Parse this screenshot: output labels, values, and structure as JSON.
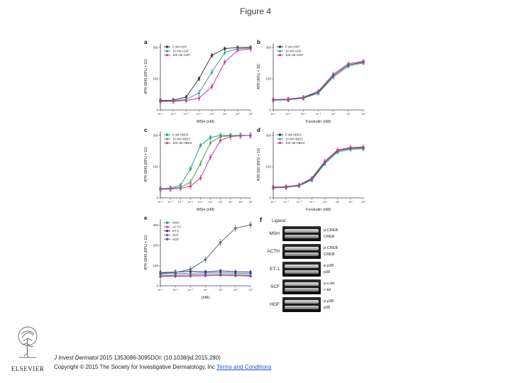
{
  "slide": {
    "title": "Figure 4"
  },
  "figure": {
    "blot_panel": {
      "panel": "f",
      "header": "Ligand",
      "rows": [
        {
          "ligand": "MSH",
          "bands": [
            "p-CREB",
            "CREB"
          ]
        },
        {
          "ligand": "ACTH",
          "bands": [
            "p-CREB",
            "CREB"
          ]
        },
        {
          "ligand": "ET-1",
          "bands": [
            "p-p38",
            "p38"
          ]
        },
        {
          "ligand": "SCF",
          "bands": [
            "p-c-kit",
            "c-kit"
          ]
        },
        {
          "ligand": "HGF",
          "bands": [
            "p-p38",
            "p38"
          ]
        }
      ]
    }
  },
  "chart_data": [
    {
      "id": "a",
      "panel": "a",
      "type": "line",
      "xlabel": "MSH (nM)",
      "ylabel": "ATR-S845 (RFU × 10)",
      "xlog": [
        -4,
        3
      ],
      "ylim": [
        0,
        320
      ],
      "yticks": [
        0,
        150,
        300
      ],
      "legend_position": "top-left",
      "grid": false,
      "series": [
        {
          "name": "0 nM ASIP",
          "color": "#3a3a3a",
          "marker": "s",
          "err": 9,
          "points": [
            [
              -4,
              45
            ],
            [
              -3,
              47
            ],
            [
              -2,
              62
            ],
            [
              -1,
              150
            ],
            [
              0,
              262
            ],
            [
              1,
              294
            ],
            [
              2,
              300
            ],
            [
              3,
              300
            ]
          ]
        },
        {
          "name": "10 nM ASIP",
          "color": "#2e9e8e",
          "marker": "^",
          "err": 11,
          "points": [
            [
              -4,
              42
            ],
            [
              -3,
              44
            ],
            [
              -2,
              50
            ],
            [
              -1,
              82
            ],
            [
              0,
              182
            ],
            [
              1,
              276
            ],
            [
              2,
              294
            ],
            [
              3,
              297
            ]
          ]
        },
        {
          "name": "100 nM ASIP",
          "color": "#c23f94",
          "marker": "o",
          "err": 11,
          "points": [
            [
              -4,
              40
            ],
            [
              -3,
              42
            ],
            [
              -2,
              45
            ],
            [
              -1,
              56
            ],
            [
              0,
              112
            ],
            [
              1,
              230
            ],
            [
              2,
              286
            ],
            [
              3,
              293
            ]
          ]
        }
      ]
    },
    {
      "id": "b",
      "panel": "b",
      "type": "line",
      "xlabel": "Forskolin (nM)",
      "ylabel": "ATR (RFU × 10)",
      "xlog": [
        -4,
        2
      ],
      "ylim": [
        0,
        320
      ],
      "yticks": [
        0,
        150,
        300
      ],
      "legend_position": "top-left",
      "grid": false,
      "series": [
        {
          "name": "0 nM ASIP",
          "color": "#3a3a3a",
          "marker": "s",
          "err": 8,
          "points": [
            [
              -4,
              48
            ],
            [
              -3,
              50
            ],
            [
              -2,
              58
            ],
            [
              -1,
              85
            ],
            [
              0,
              165
            ],
            [
              1,
              216
            ],
            [
              2,
              230
            ]
          ]
        },
        {
          "name": "10 nM ASIP",
          "color": "#2e9e8e",
          "marker": "^",
          "err": 9,
          "points": [
            [
              -4,
              46
            ],
            [
              -3,
              48
            ],
            [
              -2,
              56
            ],
            [
              -1,
              80
            ],
            [
              0,
              158
            ],
            [
              1,
              210
            ],
            [
              2,
              226
            ]
          ]
        },
        {
          "name": "100 nM ASIP",
          "color": "#c23f94",
          "marker": "o",
          "err": 9,
          "points": [
            [
              -4,
              50
            ],
            [
              -3,
              52
            ],
            [
              -2,
              61
            ],
            [
              -1,
              90
            ],
            [
              0,
              172
            ],
            [
              1,
              222
            ],
            [
              2,
              234
            ]
          ]
        }
      ]
    },
    {
      "id": "c",
      "panel": "c",
      "type": "line",
      "xlabel": "MSH (nM)",
      "ylabel": "ATR-S845 (RFU × 10)",
      "xlog": [
        -5,
        4
      ],
      "ylim": [
        0,
        320
      ],
      "yticks": [
        0,
        150,
        300
      ],
      "legend_position": "top-left",
      "grid": false,
      "series": [
        {
          "name": "0 nM HBD3",
          "color": "#2e9e8e",
          "marker": "s",
          "err": 10,
          "points": [
            [
              -5,
              45
            ],
            [
              -4,
              47
            ],
            [
              -3,
              60
            ],
            [
              -2,
              140
            ],
            [
              -1,
              252
            ],
            [
              0,
              290
            ],
            [
              1,
              300
            ],
            [
              2,
              300
            ],
            [
              3,
              300
            ],
            [
              4,
              300
            ]
          ]
        },
        {
          "name": "10 nM HBD3",
          "color": "#4aa84a",
          "marker": "^",
          "err": 12,
          "points": [
            [
              -5,
              43
            ],
            [
              -4,
              45
            ],
            [
              -3,
              50
            ],
            [
              -2,
              75
            ],
            [
              -1,
              165
            ],
            [
              0,
              266
            ],
            [
              1,
              294
            ],
            [
              2,
              298
            ],
            [
              3,
              300
            ],
            [
              4,
              300
            ]
          ]
        },
        {
          "name": "100 nM HBD3",
          "color": "#c23f94",
          "marker": "o",
          "err": 12,
          "points": [
            [
              -5,
              41
            ],
            [
              -4,
              43
            ],
            [
              -3,
              46
            ],
            [
              -2,
              55
            ],
            [
              -1,
              95
            ],
            [
              0,
              195
            ],
            [
              1,
              276
            ],
            [
              2,
              294
            ],
            [
              3,
              298
            ],
            [
              4,
              300
            ]
          ]
        }
      ]
    },
    {
      "id": "d",
      "panel": "d",
      "type": "line",
      "xlabel": "Forskolin (nM)",
      "ylabel": "ATR-S50 (RFU × 10)",
      "xlog": [
        -4,
        3
      ],
      "ylim": [
        0,
        320
      ],
      "yticks": [
        0,
        150,
        300
      ],
      "legend_position": "top-left",
      "grid": false,
      "series": [
        {
          "name": "0 nM HBD3",
          "color": "#3a3a3a",
          "marker": "s",
          "err": 8,
          "points": [
            [
              -4,
              50
            ],
            [
              -3,
              52
            ],
            [
              -2,
              60
            ],
            [
              -1,
              90
            ],
            [
              0,
              170
            ],
            [
              1,
              226
            ],
            [
              2,
              238
            ],
            [
              3,
              240
            ]
          ]
        },
        {
          "name": "10 nM HBD3",
          "color": "#2e9e8e",
          "marker": "^",
          "err": 9,
          "points": [
            [
              -4,
              48
            ],
            [
              -3,
              50
            ],
            [
              -2,
              58
            ],
            [
              -1,
              85
            ],
            [
              0,
              163
            ],
            [
              1,
              220
            ],
            [
              2,
              233
            ],
            [
              3,
              236
            ]
          ]
        },
        {
          "name": "100 nM HBD3",
          "color": "#c23f94",
          "marker": "o",
          "err": 9,
          "points": [
            [
              -4,
              52
            ],
            [
              -3,
              54
            ],
            [
              -2,
              62
            ],
            [
              -1,
              95
            ],
            [
              0,
              176
            ],
            [
              1,
              230
            ],
            [
              2,
              242
            ],
            [
              3,
              244
            ]
          ]
        }
      ]
    },
    {
      "id": "e",
      "panel": "e",
      "type": "line",
      "xlabel": "(nM)",
      "ylabel": "ATR-S845 (RFU × 10)",
      "xlog": [
        -3,
        3
      ],
      "ylim": [
        0,
        330
      ],
      "yticks": [
        0,
        100,
        200,
        300
      ],
      "legend_position": "top-left",
      "grid": false,
      "series": [
        {
          "name": "MSH",
          "color": "#2e9e8e",
          "marker": "s",
          "err": 6,
          "points": [
            [
              -3,
              58
            ],
            [
              -2,
              60
            ],
            [
              -1,
              62
            ],
            [
              0,
              64
            ],
            [
              1,
              66
            ],
            [
              2,
              62
            ],
            [
              3,
              60
            ]
          ]
        },
        {
          "name": "ACTH",
          "color": "#c23f94",
          "marker": "^",
          "err": 6,
          "points": [
            [
              -3,
              50
            ],
            [
              -2,
              52
            ],
            [
              -1,
              54
            ],
            [
              0,
              56
            ],
            [
              1,
              58
            ],
            [
              2,
              55
            ],
            [
              3,
              52
            ]
          ]
        },
        {
          "name": "ET-1",
          "color": "#2c3e70",
          "marker": "o",
          "err": 7,
          "points": [
            [
              -3,
              66
            ],
            [
              -2,
              68
            ],
            [
              -1,
              72
            ],
            [
              0,
              70
            ],
            [
              1,
              74
            ],
            [
              2,
              70
            ],
            [
              3,
              68
            ]
          ]
        },
        {
          "name": "SCF",
          "color": "#7b4fa0",
          "marker": "d",
          "err": 5,
          "points": [
            [
              -3,
              46
            ],
            [
              -2,
              47
            ],
            [
              -1,
              48
            ],
            [
              0,
              50
            ],
            [
              1,
              52
            ],
            [
              2,
              50
            ],
            [
              3,
              48
            ]
          ]
        },
        {
          "name": "HGF",
          "color": "#5d6470",
          "marker": "s",
          "err": 14,
          "points": [
            [
              -3,
              62
            ],
            [
              -2,
              66
            ],
            [
              -1,
              82
            ],
            [
              0,
              130
            ],
            [
              1,
              215
            ],
            [
              2,
              285
            ],
            [
              3,
              302
            ]
          ]
        }
      ]
    }
  ],
  "footer": {
    "logo_text": "ELSEVIER",
    "citation_journal": "J Invest Dermatol",
    "citation_rest": " 2015 1353086-3095DOI: (10.1038/jid.2015.280)",
    "copyright": "Copyright © 2015 The Society for Investigative Dermatology, Inc ",
    "terms_link": "Terms and Conditions"
  }
}
